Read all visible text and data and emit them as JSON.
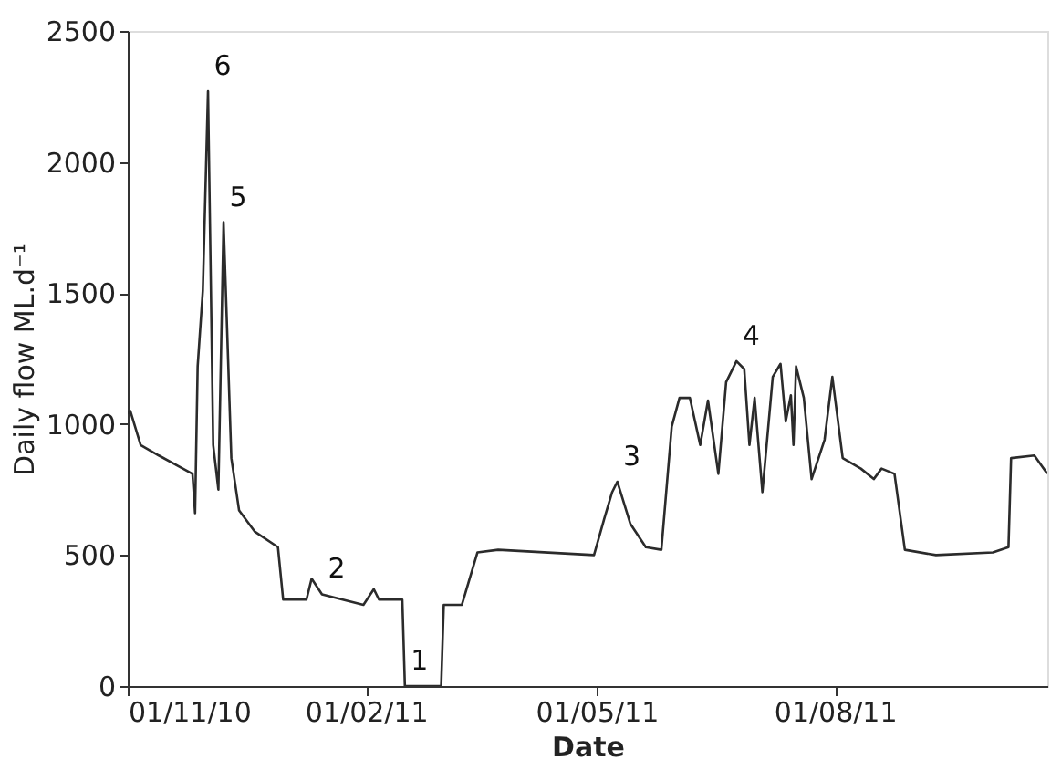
{
  "chart_data": {
    "type": "line",
    "xlabel": "Date",
    "ylabel": "Daily flow ML.d⁻¹",
    "x": [
      "2010-11-01",
      "2010-11-02",
      "2010-11-06",
      "2010-11-13",
      "2010-11-26",
      "2010-11-27",
      "2010-11-28",
      "2010-11-30",
      "2010-12-02",
      "2010-12-04",
      "2010-12-06",
      "2010-12-08",
      "2010-12-11",
      "2010-12-14",
      "2010-12-20",
      "2010-12-29",
      "2010-12-31",
      "2011-01-09",
      "2011-01-11",
      "2011-01-15",
      "2011-01-31",
      "2011-02-04",
      "2011-02-06",
      "2011-02-15",
      "2011-02-16",
      "2011-03-02",
      "2011-03-03",
      "2011-03-10",
      "2011-03-16",
      "2011-03-24",
      "2011-04-30",
      "2011-05-04",
      "2011-05-07",
      "2011-05-09",
      "2011-05-14",
      "2011-05-20",
      "2011-05-26",
      "2011-05-30",
      "2011-06-02",
      "2011-06-06",
      "2011-06-10",
      "2011-06-13",
      "2011-06-17",
      "2011-06-20",
      "2011-06-24",
      "2011-06-27",
      "2011-06-29",
      "2011-07-01",
      "2011-07-04",
      "2011-07-08",
      "2011-07-11",
      "2011-07-13",
      "2011-07-15",
      "2011-07-16",
      "2011-07-17",
      "2011-07-20",
      "2011-07-23",
      "2011-07-28",
      "2011-07-31",
      "2011-08-04",
      "2011-08-11",
      "2011-08-16",
      "2011-08-19",
      "2011-08-24",
      "2011-08-28",
      "2011-09-09",
      "2011-10-01",
      "2011-10-07",
      "2011-10-08",
      "2011-10-17",
      "2011-10-22"
    ],
    "series": [
      {
        "color": "#2b2b2b",
        "values": [
          1040,
          1050,
          920,
          880,
          810,
          660,
          1220,
          1510,
          2270,
          920,
          750,
          1770,
          870,
          670,
          590,
          530,
          330,
          330,
          410,
          350,
          310,
          370,
          330,
          330,
          0,
          0,
          310,
          310,
          510,
          520,
          500,
          640,
          740,
          780,
          620,
          530,
          520,
          990,
          1100,
          1100,
          920,
          1090,
          810,
          1160,
          1240,
          1210,
          920,
          1100,
          740,
          1180,
          1230,
          1010,
          1110,
          920,
          1220,
          1100,
          790,
          940,
          1180,
          870,
          830,
          790,
          830,
          810,
          520,
          500,
          510,
          530,
          870,
          880,
          810
        ]
      }
    ],
    "xlim": [
      "2010-11-01",
      "2011-10-22"
    ],
    "xticks": [
      {
        "value": "2010-11-01",
        "label": "01/11/10"
      },
      {
        "value": "2011-02-01",
        "label": "01/02/11"
      },
      {
        "value": "2011-05-01",
        "label": "01/05/11"
      },
      {
        "value": "2011-08-01",
        "label": "01/08/11"
      }
    ],
    "ylim": [
      0,
      2500
    ],
    "yticks": [
      0,
      500,
      1000,
      1500,
      2000,
      2500
    ],
    "grid": false,
    "marker": "none",
    "line_style": "solid",
    "annotations": [
      {
        "text": "6",
        "x": "2010-12-02",
        "y": 2270
      },
      {
        "text": "5",
        "x": "2010-12-08",
        "y": 1770
      },
      {
        "text": "2",
        "x": "2011-01-15",
        "y": 350
      },
      {
        "text": "1",
        "x": "2011-02-16",
        "y": 0
      },
      {
        "text": "3",
        "x": "2011-05-09",
        "y": 780
      },
      {
        "text": "4",
        "x": "2011-06-24",
        "y": 1240
      }
    ]
  }
}
